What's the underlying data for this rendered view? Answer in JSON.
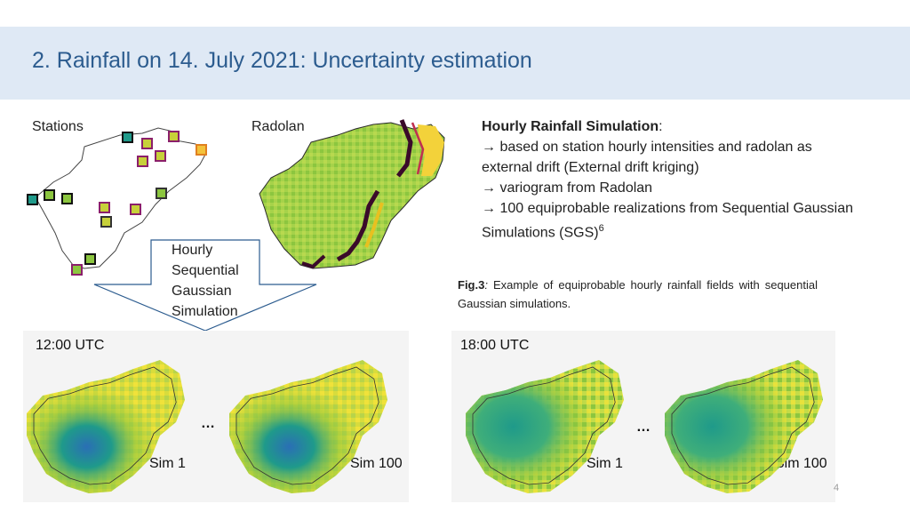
{
  "slide": {
    "title": "2. Rainfall on 14. July 2021: Uncertainty estimation",
    "page_number": "4"
  },
  "top_panels": {
    "stations_label": "Stations",
    "radolan_label": "Radolan",
    "arrow_lines": [
      "Hourly",
      "Sequential",
      "Gaussian",
      "Simulation"
    ]
  },
  "description": {
    "heading": "Hourly Rainfall Simulation",
    "heading_suffix": ":",
    "bullets": [
      "→ based on station hourly intensities and radolan as external drift (External drift kriging)",
      "→ variogram from Radolan",
      "→ 100 equiprobable realizations from Sequential Gaussian Simulations (SGS)"
    ],
    "superscript": "6"
  },
  "caption": {
    "label": "Fig.3",
    "label_suffix": ":",
    "text": " Example of equiprobable hourly rainfall fields with sequential Gaussian simulations."
  },
  "simulations": {
    "left": {
      "time": "12:00 UTC",
      "sim_a": "Sim 1",
      "sim_b": "Sim 100",
      "ellipsis": "…"
    },
    "right": {
      "time": "18:00 UTC",
      "sim_a": "Sim 1",
      "sim_b": "Sim 100",
      "ellipsis": "…"
    }
  },
  "colors": {
    "title": "#2c5c8f",
    "header_bg": "#dfe9f5",
    "rain_low": "#f3e23a",
    "rain_mid": "#8cc63f",
    "rain_high": "#1f9a8a",
    "rain_max": "#2a6fb5",
    "station_border": "#8b1f6b"
  }
}
